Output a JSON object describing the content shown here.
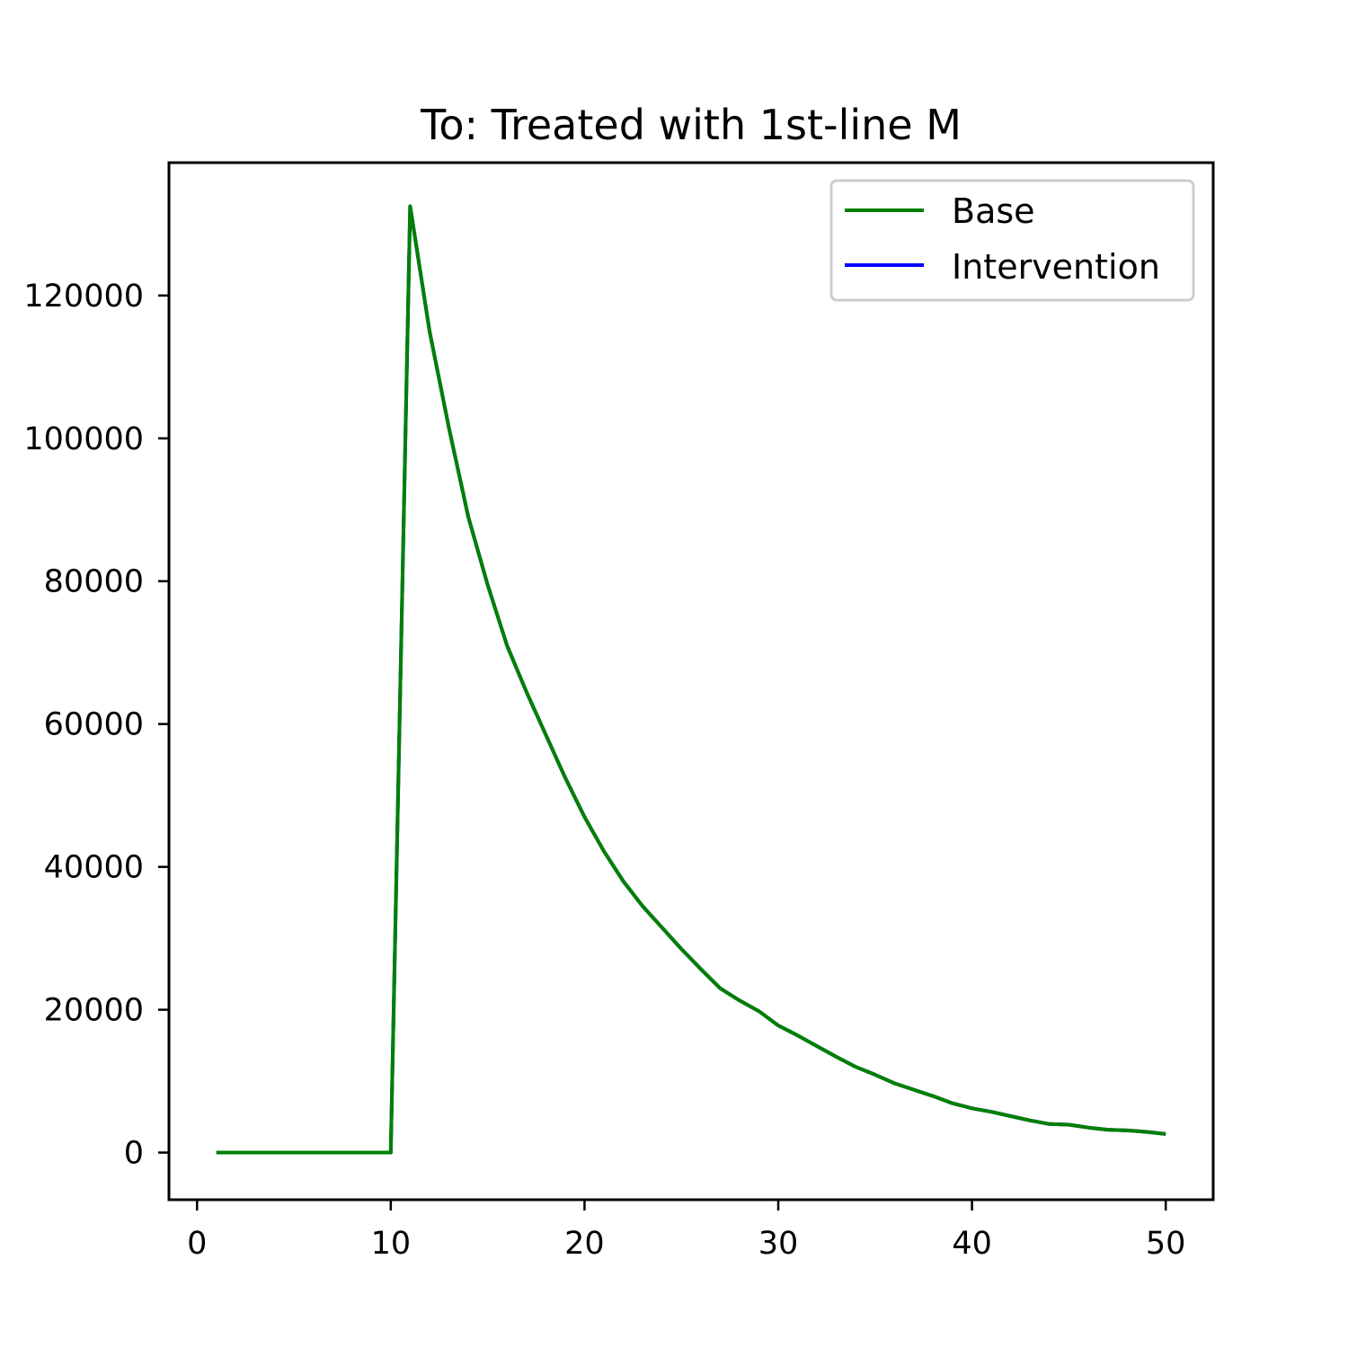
{
  "chart_data": {
    "type": "line",
    "title": "To: Treated with 1st-line M",
    "xlabel": "",
    "ylabel": "",
    "xlim": [
      -1.45,
      52.45
    ],
    "ylim": [
      -6600,
      138600
    ],
    "x_ticks": [
      0,
      10,
      20,
      30,
      40,
      50
    ],
    "y_ticks": [
      0,
      20000,
      40000,
      60000,
      80000,
      100000,
      120000
    ],
    "grid": false,
    "legend_position": "top-right",
    "x": [
      1,
      2,
      3,
      4,
      5,
      6,
      7,
      8,
      9,
      10,
      11,
      12,
      13,
      14,
      15,
      16,
      17,
      18,
      19,
      20,
      21,
      22,
      23,
      24,
      25,
      26,
      27,
      28,
      29,
      30,
      31,
      32,
      33,
      34,
      35,
      36,
      37,
      38,
      39,
      40,
      41,
      42,
      43,
      44,
      45,
      46,
      47,
      48,
      49,
      50
    ],
    "series": [
      {
        "name": "Base",
        "color": "#008000",
        "values": [
          0,
          0,
          0,
          0,
          0,
          0,
          0,
          0,
          0,
          0,
          132500,
          115000,
          101500,
          89000,
          79500,
          71000,
          64500,
          58500,
          52500,
          47000,
          42200,
          38000,
          34500,
          31500,
          28500,
          25700,
          23000,
          21300,
          19800,
          17800,
          16400,
          14900,
          13400,
          12000,
          10900,
          9700,
          8800,
          7900,
          6900,
          6200,
          5700,
          5100,
          4500,
          4000,
          3900,
          3500,
          3200,
          3100,
          2900,
          2600
        ]
      },
      {
        "name": "Intervention",
        "color": "#0000ff",
        "values": [
          0,
          0,
          0,
          0,
          0,
          0,
          0,
          0,
          0,
          0,
          132500,
          115000,
          101500,
          89000,
          79500,
          71000,
          64500,
          58500,
          52500,
          47000,
          42200,
          38000,
          34500,
          31500,
          28500,
          25700,
          23000,
          21300,
          19800,
          17800,
          16400,
          14900,
          13400,
          12000,
          10900,
          9700,
          8800,
          7900,
          6900,
          6200,
          5700,
          5100,
          4500,
          4000,
          3900,
          3500,
          3200,
          3100,
          2900,
          2600
        ]
      }
    ]
  }
}
